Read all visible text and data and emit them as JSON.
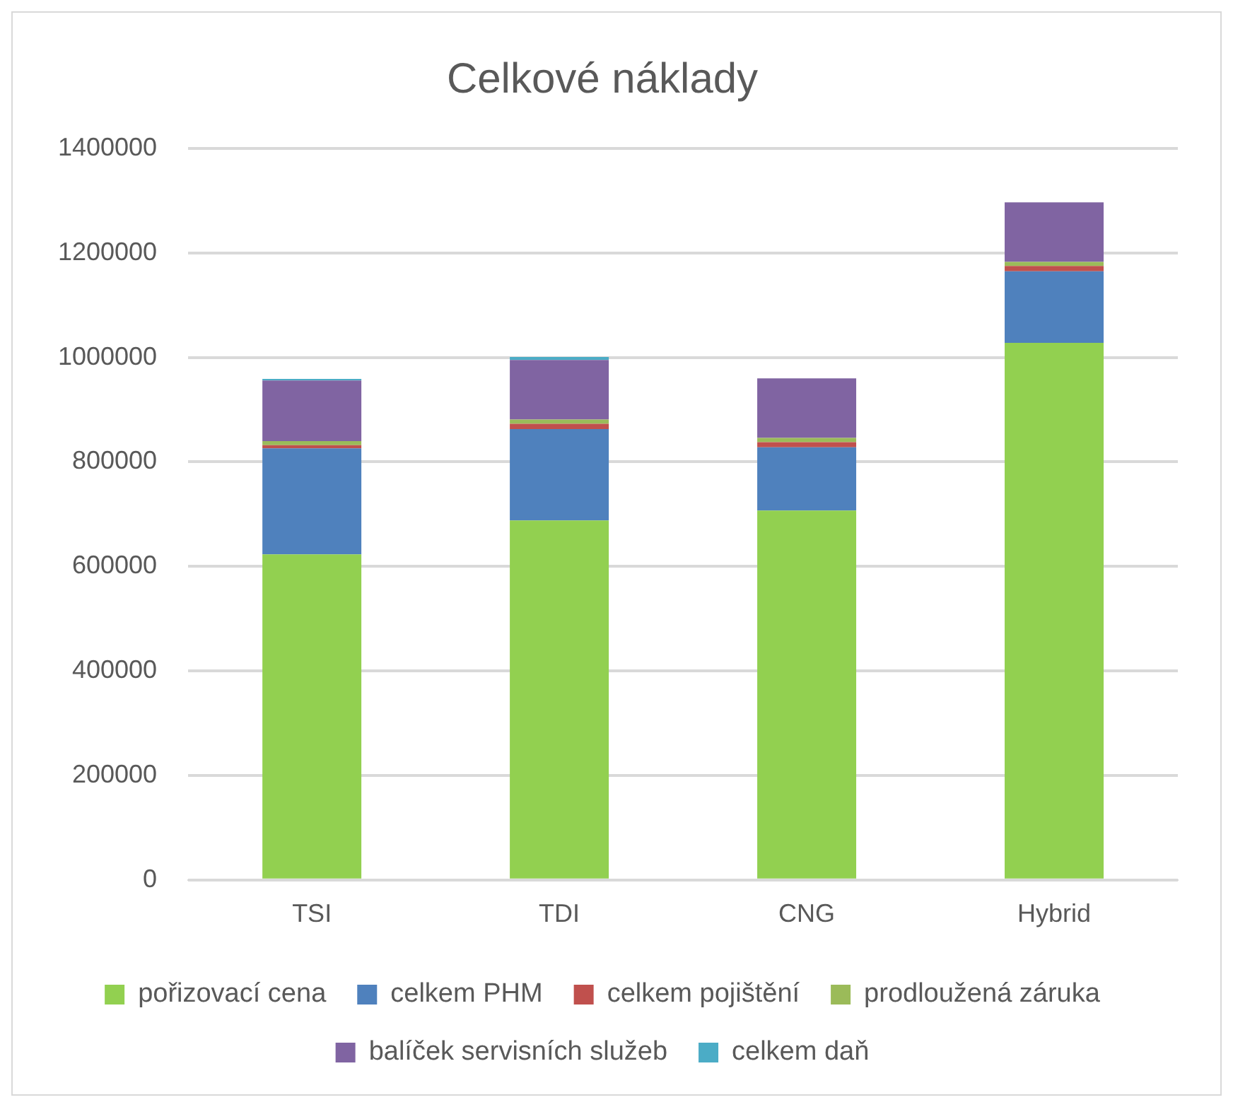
{
  "chart_data": {
    "type": "bar",
    "title": "Celkové náklady",
    "stacked": true,
    "categories": [
      "TSI",
      "TDI",
      "CNG",
      "Hybrid"
    ],
    "series": [
      {
        "name": "pořizovací cena",
        "color": "#92d050",
        "values": [
          623000,
          688000,
          707000,
          1028000
        ]
      },
      {
        "name": "celkem PHM",
        "color": "#4f81bd",
        "values": [
          203000,
          175000,
          121000,
          137000
        ]
      },
      {
        "name": "celkem pojištění",
        "color": "#c0504d",
        "values": [
          6000,
          10000,
          10000,
          10000
        ]
      },
      {
        "name": "prodloužená záruka",
        "color": "#9bbb59",
        "values": [
          8000,
          8000,
          8000,
          8000
        ]
      },
      {
        "name": "balíček servisních služeb",
        "color": "#8064a2",
        "values": [
          116000,
          114000,
          114000,
          114000
        ]
      },
      {
        "name": "celkem daň",
        "color": "#4bacc6",
        "values": [
          3000,
          6000,
          0,
          0
        ]
      }
    ],
    "ylim": [
      0,
      1400000
    ],
    "yticks": [
      0,
      200000,
      400000,
      600000,
      800000,
      1000000,
      1200000,
      1400000
    ],
    "grid": "y",
    "legend": "bottom"
  }
}
